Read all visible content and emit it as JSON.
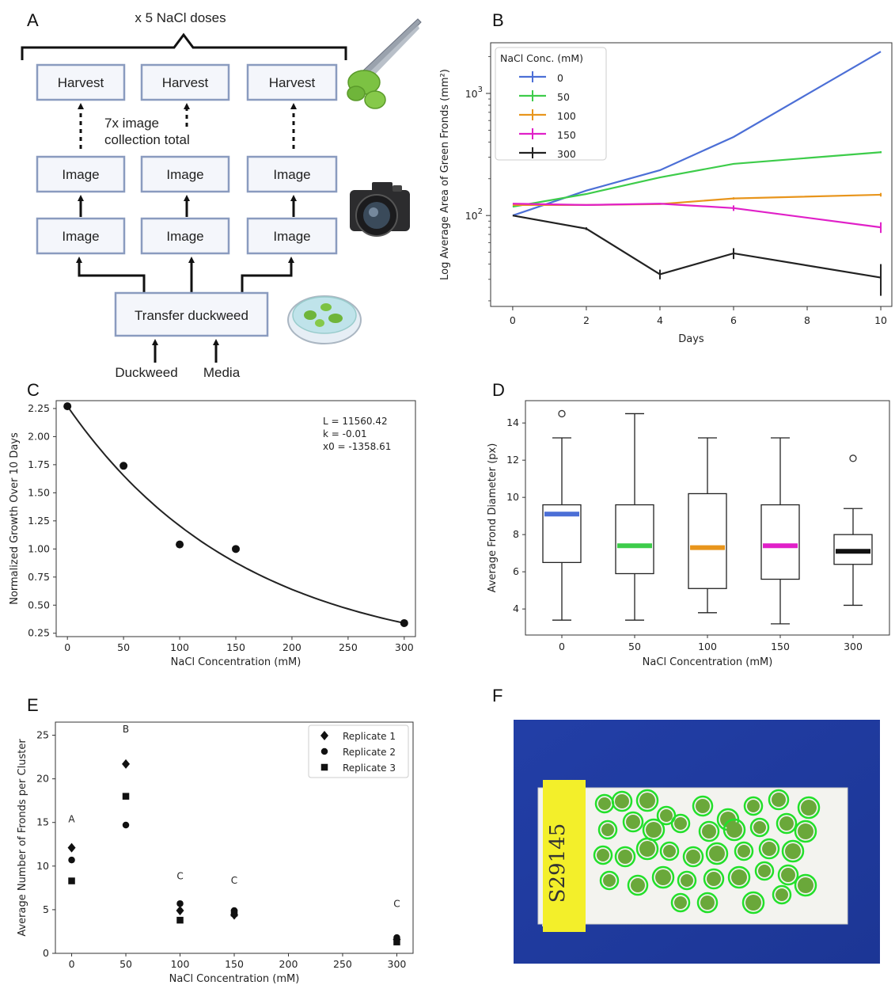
{
  "panels": {
    "A": {
      "label": "A",
      "bracket_text": "x 5 NaCl doses",
      "harvest_label": "Harvest",
      "image_label": "Image",
      "collection_note_line1": "7x image",
      "collection_note_line2": "collection total",
      "transfer_label": "Transfer  duckweed",
      "input1_label": "Duckweed",
      "input2_label": "Media",
      "icons": [
        "tweezers-with-duckweed-icon",
        "camera-icon",
        "petri-dish-icon"
      ]
    },
    "B": {
      "label": "B"
    },
    "C": {
      "label": "C"
    },
    "D": {
      "label": "D"
    },
    "E": {
      "label": "E"
    },
    "F": {
      "label": "F",
      "tag_text": "S29145"
    }
  },
  "chart_data": [
    {
      "id": "B",
      "type": "line",
      "xlabel": "Days",
      "ylabel": "Log Average Area of Green Fronds (mm²)",
      "yscale": "log",
      "xlim": [
        -0.6,
        10.3
      ],
      "ylim": [
        18,
        2600
      ],
      "xticks": [
        "0",
        "2",
        "4",
        "6",
        "8",
        "10"
      ],
      "yticks": [
        {
          "value": 100,
          "base": "10",
          "exp": "2"
        },
        {
          "value": 1000,
          "base": "10",
          "exp": "3"
        }
      ],
      "legend_title": "NaCl Conc. (mM)",
      "legend_position": "top-left",
      "x": [
        0,
        2,
        4,
        6,
        10
      ],
      "series": [
        {
          "name": "0",
          "color": "#4c6fd6",
          "values": [
            100,
            160,
            235,
            440,
            2200
          ],
          "err": [
            0,
            0,
            0,
            0,
            0
          ]
        },
        {
          "name": "50",
          "color": "#3dcc4a",
          "values": [
            118,
            150,
            205,
            265,
            330
          ],
          "err": [
            0,
            0,
            0,
            0,
            6
          ]
        },
        {
          "name": "100",
          "color": "#e8951c",
          "values": [
            122,
            122,
            124,
            138,
            148
          ],
          "err": [
            0,
            0,
            0,
            3,
            5
          ]
        },
        {
          "name": "150",
          "color": "#e020c8",
          "values": [
            125,
            122,
            125,
            115,
            80
          ],
          "err": [
            0,
            0,
            0,
            6,
            8
          ]
        },
        {
          "name": "300",
          "color": "#222222",
          "values": [
            100,
            78,
            33,
            49,
            31
          ],
          "err": [
            0,
            2,
            3,
            5,
            9
          ]
        }
      ]
    },
    {
      "id": "C",
      "type": "scatter",
      "xlabel": "NaCl Concentration (mM)",
      "ylabel": "Normalized Growth Over 10 Days",
      "xlim": [
        -10,
        310
      ],
      "ylim": [
        0.22,
        2.32
      ],
      "xticks": [
        "0",
        "50",
        "100",
        "150",
        "200",
        "250",
        "300"
      ],
      "yticks": [
        "0.25",
        "0.50",
        "0.75",
        "1.00",
        "1.25",
        "1.50",
        "1.75",
        "2.00",
        "2.25"
      ],
      "points": [
        {
          "x": 0,
          "y": 2.27
        },
        {
          "x": 50,
          "y": 1.74
        },
        {
          "x": 100,
          "y": 1.04
        },
        {
          "x": 150,
          "y": 1.0
        },
        {
          "x": 300,
          "y": 0.34
        }
      ],
      "fit": {
        "L": 11560.42,
        "k": -0.01,
        "x0": -1358.61
      },
      "annotations": [
        "L = 11560.42",
        "k = -0.01",
        "x0 = -1358.61"
      ]
    },
    {
      "id": "D",
      "type": "box",
      "xlabel": "NaCl Concentration (mM)",
      "ylabel": "Average Frond Diameter (px)",
      "ylim": [
        2.6,
        15.2
      ],
      "yticks": [
        "4",
        "6",
        "8",
        "10",
        "12",
        "14"
      ],
      "categories": [
        "0",
        "50",
        "100",
        "150",
        "300"
      ],
      "boxes": [
        {
          "whislo": 3.4,
          "q1": 6.5,
          "med": 9.1,
          "q3": 9.6,
          "whishi": 13.2,
          "fliers": [
            14.5
          ],
          "color": "#4c6fd6"
        },
        {
          "whislo": 3.4,
          "q1": 5.9,
          "med": 7.4,
          "q3": 9.6,
          "whishi": 14.5,
          "fliers": [],
          "color": "#3dcc4a"
        },
        {
          "whislo": 3.8,
          "q1": 5.1,
          "med": 7.3,
          "q3": 10.2,
          "whishi": 13.2,
          "fliers": [],
          "color": "#e8951c"
        },
        {
          "whislo": 3.2,
          "q1": 5.6,
          "med": 7.4,
          "q3": 9.6,
          "whishi": 13.2,
          "fliers": [],
          "color": "#e020c8"
        },
        {
          "whislo": 4.2,
          "q1": 6.4,
          "med": 7.1,
          "q3": 8.0,
          "whishi": 9.4,
          "fliers": [
            12.1
          ],
          "color": "#111111"
        }
      ]
    },
    {
      "id": "E",
      "type": "scatter",
      "xlabel": "NaCl Concentration (mM)",
      "ylabel": "Average Number of Fronds per Cluster",
      "xlim": [
        -15,
        315
      ],
      "ylim": [
        0,
        26.5
      ],
      "xticks": [
        "0",
        "50",
        "100",
        "150",
        "200",
        "250",
        "300"
      ],
      "yticks": [
        "0",
        "5",
        "10",
        "15",
        "20",
        "25"
      ],
      "legend_position": "top-right",
      "series": [
        {
          "name": "Replicate 1",
          "marker": "diamond",
          "points": [
            {
              "x": 0,
              "y": 12.1
            },
            {
              "x": 50,
              "y": 21.7
            },
            {
              "x": 100,
              "y": 4.9
            },
            {
              "x": 150,
              "y": 4.4
            },
            {
              "x": 300,
              "y": 1.6
            }
          ]
        },
        {
          "name": "Replicate 2",
          "marker": "circle",
          "points": [
            {
              "x": 0,
              "y": 10.7
            },
            {
              "x": 50,
              "y": 14.7
            },
            {
              "x": 100,
              "y": 5.7
            },
            {
              "x": 150,
              "y": 4.9
            },
            {
              "x": 300,
              "y": 1.8
            }
          ]
        },
        {
          "name": "Replicate 3",
          "marker": "square",
          "points": [
            {
              "x": 0,
              "y": 8.3
            },
            {
              "x": 50,
              "y": 18.0
            },
            {
              "x": 100,
              "y": 3.8
            },
            {
              "x": 150,
              "y": 4.6
            },
            {
              "x": 300,
              "y": 1.3
            }
          ]
        }
      ],
      "group_letters": [
        {
          "x": 0,
          "y": 15.0,
          "text": "A"
        },
        {
          "x": 50,
          "y": 25.3,
          "text": "B"
        },
        {
          "x": 100,
          "y": 8.5,
          "text": "C"
        },
        {
          "x": 150,
          "y": 8.0,
          "text": "C"
        },
        {
          "x": 300,
          "y": 5.3,
          "text": "C"
        }
      ]
    }
  ]
}
